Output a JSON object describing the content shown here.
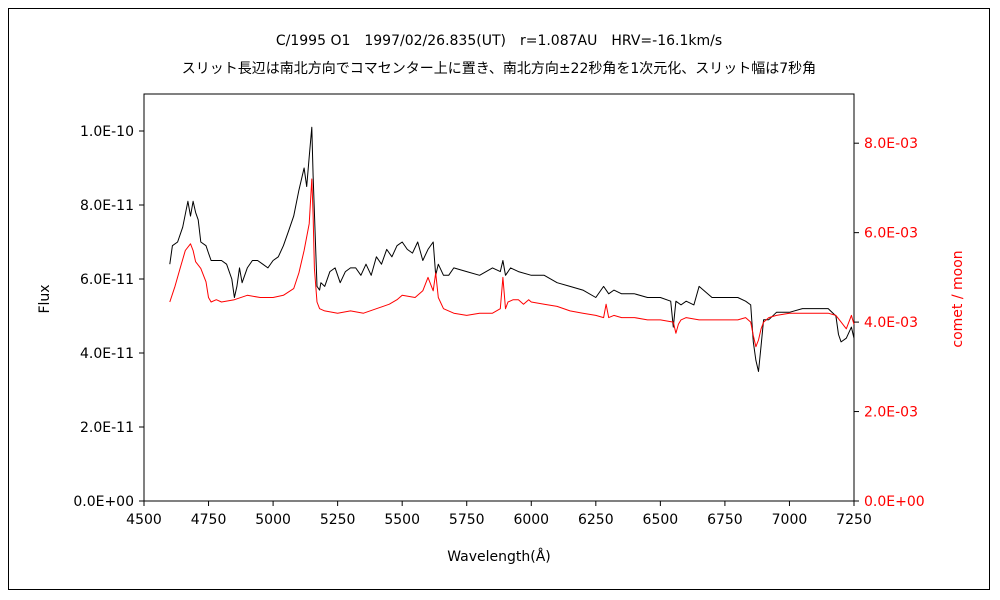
{
  "chart_data": {
    "type": "line",
    "title": "C/1995 O1　1997/02/26.835(UT)　r=1.087AU　HRV=-16.1km/s",
    "subtitle": "スリット長辺は南北方向でコマセンター上に置き、南北方向±22秒角を1次元化、スリット幅は7秒角",
    "xlabel": "Wavelength(Å)",
    "ylabel": "Flux",
    "y2label": "comet / moon",
    "xlim": [
      4500,
      7250
    ],
    "ylim": [
      0,
      1.1e-10
    ],
    "y2lim": [
      0,
      0.0091
    ],
    "x_ticks": [
      "4500",
      "4750",
      "5000",
      "5250",
      "5500",
      "5750",
      "6000",
      "6250",
      "6500",
      "6750",
      "7000",
      "7250"
    ],
    "y_ticks": [
      "0.0E+00",
      "2.0E-11",
      "4.0E-11",
      "6.0E-11",
      "8.0E-11",
      "1.0E-10"
    ],
    "y2_ticks": [
      "0.0E+00",
      "2.0E-03",
      "4.0E-03",
      "6.0E-03",
      "8.0E-03"
    ],
    "grid": false,
    "series": [
      {
        "axis": "left",
        "color": "#000000",
        "x": [
          4600,
          4610,
          4630,
          4650,
          4670,
          4680,
          4690,
          4700,
          4710,
          4720,
          4740,
          4750,
          4760,
          4800,
          4820,
          4840,
          4850,
          4860,
          4870,
          4880,
          4900,
          4920,
          4940,
          4960,
          4980,
          5000,
          5020,
          5040,
          5060,
          5080,
          5100,
          5120,
          5130,
          5140,
          5150,
          5155,
          5160,
          5170,
          5180,
          5185,
          5200,
          5220,
          5240,
          5260,
          5280,
          5300,
          5320,
          5340,
          5360,
          5380,
          5400,
          5420,
          5440,
          5460,
          5480,
          5500,
          5520,
          5540,
          5560,
          5580,
          5600,
          5620,
          5630,
          5640,
          5660,
          5680,
          5700,
          5750,
          5800,
          5850,
          5880,
          5890,
          5900,
          5920,
          5950,
          6000,
          6050,
          6100,
          6150,
          6200,
          6250,
          6280,
          6300,
          6320,
          6350,
          6400,
          6450,
          6500,
          6540,
          6550,
          6560,
          6580,
          6600,
          6630,
          6650,
          6700,
          6750,
          6800,
          6830,
          6850,
          6860,
          6870,
          6880,
          6890,
          6900,
          6920,
          6950,
          7000,
          7050,
          7100,
          7150,
          7180,
          7190,
          7200,
          7220,
          7240,
          7250
        ],
        "y": [
          6.4e-11,
          6.9e-11,
          7e-11,
          7.4e-11,
          8.1e-11,
          7.7e-11,
          8.1e-11,
          7.8e-11,
          7.6e-11,
          7e-11,
          6.9e-11,
          6.7e-11,
          6.5e-11,
          6.5e-11,
          6.4e-11,
          6e-11,
          5.5e-11,
          5.8e-11,
          6.3e-11,
          5.9e-11,
          6.3e-11,
          6.5e-11,
          6.5e-11,
          6.4e-11,
          6.3e-11,
          6.5e-11,
          6.6e-11,
          6.9e-11,
          7.3e-11,
          7.7e-11,
          8.4e-11,
          9e-11,
          8.5e-11,
          9.3e-11,
          1.01e-10,
          8.8e-11,
          7.8e-11,
          5.8e-11,
          5.7e-11,
          5.9e-11,
          5.8e-11,
          6.2e-11,
          6.3e-11,
          5.9e-11,
          6.2e-11,
          6.3e-11,
          6.3e-11,
          6.1e-11,
          6.4e-11,
          6.1e-11,
          6.6e-11,
          6.4e-11,
          6.8e-11,
          6.6e-11,
          6.9e-11,
          7e-11,
          6.8e-11,
          6.7e-11,
          7e-11,
          6.5e-11,
          6.8e-11,
          7e-11,
          6.1e-11,
          6.4e-11,
          6.1e-11,
          6.1e-11,
          6.3e-11,
          6.2e-11,
          6.1e-11,
          6.3e-11,
          6.2e-11,
          6.5e-11,
          6.1e-11,
          6.3e-11,
          6.2e-11,
          6.1e-11,
          6.1e-11,
          5.9e-11,
          5.8e-11,
          5.7e-11,
          5.5e-11,
          5.8e-11,
          5.6e-11,
          5.7e-11,
          5.6e-11,
          5.6e-11,
          5.5e-11,
          5.5e-11,
          5.4e-11,
          4.7e-11,
          5.4e-11,
          5.3e-11,
          5.4e-11,
          5.3e-11,
          5.8e-11,
          5.5e-11,
          5.5e-11,
          5.5e-11,
          5.4e-11,
          5.3e-11,
          4.3e-11,
          3.8e-11,
          3.5e-11,
          4.2e-11,
          4.9e-11,
          4.9e-11,
          5.1e-11,
          5.1e-11,
          5.2e-11,
          5.2e-11,
          5.2e-11,
          5e-11,
          4.5e-11,
          4.3e-11,
          4.4e-11,
          4.7e-11,
          4.4e-11
        ]
      },
      {
        "axis": "right",
        "color": "#ff0000",
        "x": [
          4600,
          4620,
          4640,
          4660,
          4680,
          4690,
          4700,
          4720,
          4740,
          4750,
          4760,
          4780,
          4800,
          4850,
          4900,
          4950,
          5000,
          5040,
          5080,
          5100,
          5120,
          5140,
          5150,
          5155,
          5160,
          5170,
          5180,
          5200,
          5250,
          5300,
          5350,
          5400,
          5450,
          5480,
          5500,
          5550,
          5580,
          5600,
          5620,
          5630,
          5640,
          5660,
          5700,
          5750,
          5800,
          5850,
          5880,
          5890,
          5900,
          5910,
          5930,
          5950,
          5970,
          5990,
          6000,
          6050,
          6100,
          6150,
          6200,
          6250,
          6280,
          6290,
          6300,
          6320,
          6350,
          6400,
          6450,
          6500,
          6550,
          6560,
          6570,
          6580,
          6600,
          6650,
          6700,
          6750,
          6800,
          6830,
          6850,
          6860,
          6870,
          6880,
          6890,
          6900,
          6920,
          6950,
          7000,
          7050,
          7100,
          7150,
          7180,
          7200,
          7220,
          7240,
          7250
        ],
        "y": [
          0.00445,
          0.0048,
          0.0052,
          0.0056,
          0.00575,
          0.0056,
          0.00535,
          0.0052,
          0.0049,
          0.00455,
          0.00445,
          0.0045,
          0.00445,
          0.0045,
          0.0046,
          0.00455,
          0.00455,
          0.0046,
          0.00475,
          0.0051,
          0.0056,
          0.0062,
          0.0072,
          0.0064,
          0.0052,
          0.00445,
          0.0043,
          0.00425,
          0.0042,
          0.00425,
          0.0042,
          0.0043,
          0.0044,
          0.0045,
          0.0046,
          0.00455,
          0.0047,
          0.005,
          0.0047,
          0.0051,
          0.00455,
          0.0043,
          0.0042,
          0.00415,
          0.0042,
          0.0042,
          0.0043,
          0.005,
          0.0043,
          0.00445,
          0.0045,
          0.0045,
          0.0044,
          0.0045,
          0.00445,
          0.0044,
          0.00435,
          0.00425,
          0.0042,
          0.00415,
          0.0041,
          0.0044,
          0.0041,
          0.00415,
          0.0041,
          0.0041,
          0.00405,
          0.00405,
          0.004,
          0.00375,
          0.00395,
          0.00405,
          0.0041,
          0.00405,
          0.00405,
          0.00405,
          0.00405,
          0.0041,
          0.004,
          0.0037,
          0.00345,
          0.0036,
          0.00385,
          0.004,
          0.0041,
          0.00415,
          0.0042,
          0.0042,
          0.0042,
          0.0042,
          0.00415,
          0.004,
          0.00385,
          0.00415,
          0.00395
        ]
      }
    ]
  }
}
